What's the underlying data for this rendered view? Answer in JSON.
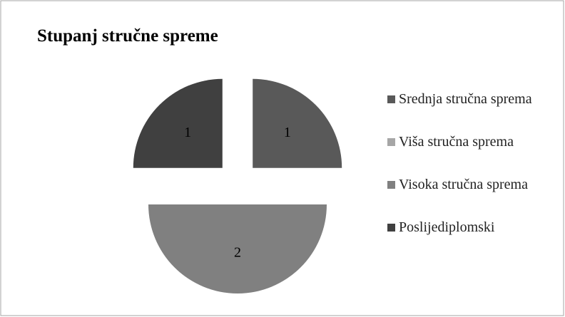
{
  "chart_data": {
    "type": "pie",
    "title": "Stupanj stručne spreme",
    "categories": [
      "Srednja stručna sprema",
      "Viša stručna sprema",
      "Visoka stručna sprema",
      "Poslijediplomski"
    ],
    "values": [
      1,
      0,
      2,
      1
    ],
    "colors": [
      "#595959",
      "#a6a6a6",
      "#808080",
      "#404040"
    ],
    "exploded": true,
    "legend": "right"
  }
}
